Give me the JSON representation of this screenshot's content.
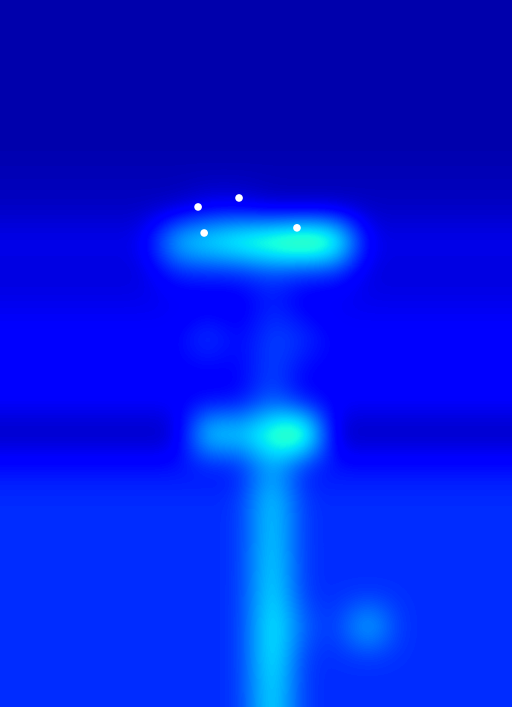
{
  "chart_data": {
    "type": "heatmap",
    "color": "jet",
    "color_range": [
      0,
      1
    ],
    "tick_labels": false,
    "xlim": [
      -0.5,
      15.5
    ],
    "ylim": [
      21.5,
      -0.5
    ],
    "cells": [
      [
        0.04,
        0.04,
        0.04,
        0.04,
        0.04,
        0.04,
        0.04,
        0.04,
        0.04,
        0.04,
        0.04,
        0.04,
        0.04,
        0.04,
        0.04,
        0.04
      ],
      [
        0.04,
        0.04,
        0.04,
        0.04,
        0.04,
        0.04,
        0.04,
        0.04,
        0.04,
        0.04,
        0.04,
        0.04,
        0.04,
        0.04,
        0.04,
        0.04
      ],
      [
        0.04,
        0.04,
        0.04,
        0.04,
        0.04,
        0.04,
        0.04,
        0.04,
        0.04,
        0.04,
        0.04,
        0.04,
        0.04,
        0.04,
        0.04,
        0.04
      ],
      [
        0.04,
        0.04,
        0.04,
        0.04,
        0.04,
        0.04,
        0.04,
        0.04,
        0.04,
        0.04,
        0.04,
        0.04,
        0.04,
        0.04,
        0.04,
        0.04
      ],
      [
        0.04,
        0.04,
        0.04,
        0.04,
        0.04,
        0.04,
        0.04,
        0.04,
        0.04,
        0.04,
        0.04,
        0.04,
        0.04,
        0.04,
        0.04,
        0.04
      ],
      [
        0.05,
        0.05,
        0.05,
        0.05,
        0.05,
        0.05,
        0.05,
        0.05,
        0.05,
        0.05,
        0.05,
        0.05,
        0.05,
        0.05,
        0.05,
        0.05
      ],
      [
        0.06,
        0.06,
        0.06,
        0.06,
        0.06,
        0.06,
        0.1,
        0.1,
        0.06,
        0.06,
        0.06,
        0.06,
        0.06,
        0.06,
        0.06,
        0.06
      ],
      [
        0.1,
        0.1,
        0.1,
        0.1,
        0.1,
        0.35,
        0.4,
        0.45,
        0.5,
        0.55,
        0.5,
        0.1,
        0.1,
        0.1,
        0.1,
        0.1
      ],
      [
        0.08,
        0.08,
        0.08,
        0.08,
        0.08,
        0.15,
        0.15,
        0.15,
        0.18,
        0.15,
        0.15,
        0.08,
        0.08,
        0.08,
        0.08,
        0.08
      ],
      [
        0.1,
        0.1,
        0.1,
        0.1,
        0.1,
        0.1,
        0.1,
        0.1,
        0.16,
        0.1,
        0.1,
        0.1,
        0.1,
        0.1,
        0.1,
        0.1
      ],
      [
        0.12,
        0.12,
        0.12,
        0.12,
        0.12,
        0.12,
        0.2,
        0.12,
        0.2,
        0.18,
        0.12,
        0.12,
        0.12,
        0.12,
        0.12,
        0.12
      ],
      [
        0.12,
        0.12,
        0.12,
        0.12,
        0.12,
        0.12,
        0.12,
        0.12,
        0.2,
        0.12,
        0.12,
        0.12,
        0.12,
        0.12,
        0.12,
        0.12
      ],
      [
        0.12,
        0.12,
        0.12,
        0.12,
        0.12,
        0.12,
        0.12,
        0.12,
        0.22,
        0.12,
        0.12,
        0.12,
        0.12,
        0.12,
        0.12,
        0.12
      ],
      [
        0.05,
        0.05,
        0.05,
        0.05,
        0.05,
        0.05,
        0.4,
        0.35,
        0.45,
        0.55,
        0.05,
        0.05,
        0.05,
        0.05,
        0.05,
        0.05
      ],
      [
        0.14,
        0.14,
        0.14,
        0.14,
        0.14,
        0.14,
        0.14,
        0.14,
        0.3,
        0.14,
        0.14,
        0.14,
        0.14,
        0.14,
        0.14,
        0.14
      ],
      [
        0.17,
        0.17,
        0.17,
        0.17,
        0.17,
        0.17,
        0.17,
        0.17,
        0.36,
        0.17,
        0.17,
        0.17,
        0.17,
        0.17,
        0.17,
        0.17
      ],
      [
        0.17,
        0.17,
        0.17,
        0.17,
        0.17,
        0.17,
        0.17,
        0.17,
        0.36,
        0.17,
        0.17,
        0.17,
        0.17,
        0.17,
        0.17,
        0.17
      ],
      [
        0.17,
        0.17,
        0.17,
        0.17,
        0.17,
        0.17,
        0.17,
        0.17,
        0.37,
        0.17,
        0.17,
        0.17,
        0.17,
        0.17,
        0.17,
        0.17
      ],
      [
        0.17,
        0.17,
        0.17,
        0.17,
        0.17,
        0.17,
        0.17,
        0.17,
        0.38,
        0.17,
        0.17,
        0.17,
        0.17,
        0.17,
        0.17,
        0.17
      ],
      [
        0.17,
        0.17,
        0.17,
        0.17,
        0.17,
        0.17,
        0.17,
        0.17,
        0.4,
        0.22,
        0.17,
        0.35,
        0.17,
        0.17,
        0.17,
        0.17
      ],
      [
        0.17,
        0.17,
        0.17,
        0.17,
        0.17,
        0.17,
        0.17,
        0.17,
        0.4,
        0.17,
        0.17,
        0.17,
        0.17,
        0.17,
        0.17,
        0.17
      ],
      [
        0.17,
        0.17,
        0.17,
        0.17,
        0.17,
        0.17,
        0.17,
        0.17,
        0.38,
        0.17,
        0.17,
        0.17,
        0.17,
        0.17,
        0.17,
        0.17
      ]
    ],
    "points": {
      "color": "white",
      "marker": "o",
      "x": [
        5.69,
        6.97,
        5.88,
        8.78
      ],
      "y": [
        5.94,
        5.66,
        6.75,
        6.59
      ]
    }
  }
}
